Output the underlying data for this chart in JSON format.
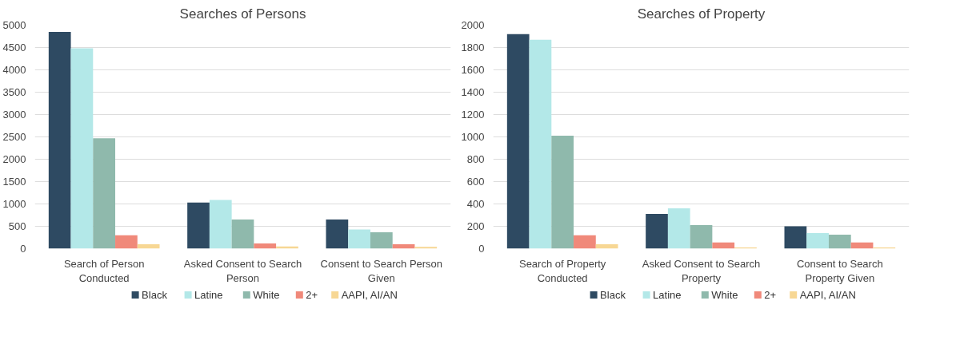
{
  "chart_data": [
    {
      "type": "bar",
      "title": "Searches of Persons",
      "categories": [
        "Search of Person Conducted",
        "Asked Consent to Search Person",
        "Consent to Search Person Given"
      ],
      "series": [
        {
          "name": "Black",
          "color": "#2e4a62",
          "values": [
            4850,
            1030,
            650
          ]
        },
        {
          "name": "Latine",
          "color": "#b3e8e8",
          "values": [
            4480,
            1090,
            430
          ]
        },
        {
          "name": "White",
          "color": "#8fb9ac",
          "values": [
            2470,
            650,
            365
          ]
        },
        {
          "name": "2+",
          "color": "#f0897a",
          "values": [
            300,
            115,
            100
          ]
        },
        {
          "name": "AAPI, AI/AN",
          "color": "#f7d794",
          "values": [
            100,
            50,
            40
          ]
        }
      ],
      "ylim": [
        0,
        5000
      ],
      "yticks": [
        0,
        500,
        1000,
        1500,
        2000,
        2500,
        3000,
        3500,
        4000,
        4500,
        5000
      ],
      "grid": "y",
      "legend": "bottom"
    },
    {
      "type": "bar",
      "title": "Searches of Property",
      "categories": [
        "Search of Property Conducted",
        "Asked Consent to Search Property",
        "Consent to Search Property Given"
      ],
      "series": [
        {
          "name": "Black",
          "color": "#2e4a62",
          "values": [
            1920,
            310,
            200
          ]
        },
        {
          "name": "Latine",
          "color": "#b3e8e8",
          "values": [
            1870,
            360,
            140
          ]
        },
        {
          "name": "White",
          "color": "#8fb9ac",
          "values": [
            1010,
            210,
            125
          ]
        },
        {
          "name": "2+",
          "color": "#f0897a",
          "values": [
            120,
            55,
            55
          ]
        },
        {
          "name": "AAPI, AI/AN",
          "color": "#f7d794",
          "values": [
            40,
            10,
            10
          ]
        }
      ],
      "ylim": [
        0,
        2000
      ],
      "yticks": [
        0,
        200,
        400,
        600,
        800,
        1000,
        1200,
        1400,
        1600,
        1800,
        2000
      ],
      "grid": "y",
      "legend": "bottom"
    }
  ]
}
